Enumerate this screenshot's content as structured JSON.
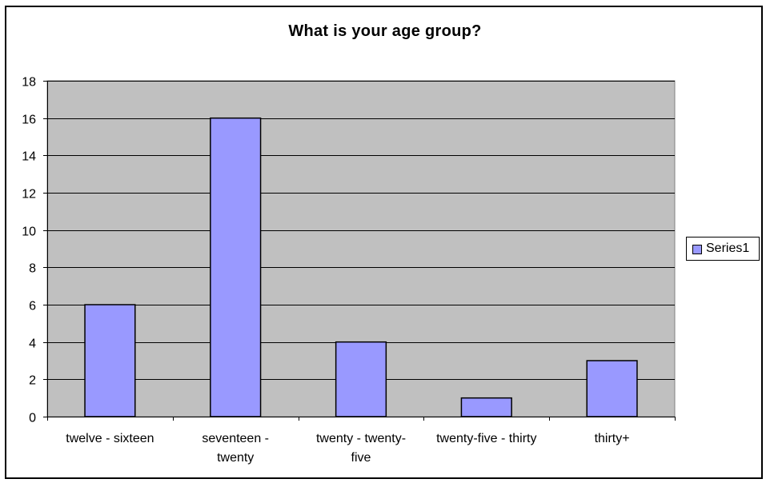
{
  "chart_data": {
    "type": "bar",
    "title": "What is your age group?",
    "categories": [
      [
        "twelve - sixteen"
      ],
      [
        "seventeen -",
        "twenty"
      ],
      [
        "twenty - twenty-",
        "five"
      ],
      [
        "twenty-five - thirty"
      ],
      [
        "thirty+"
      ]
    ],
    "series": [
      {
        "name": "Series1",
        "values": [
          6,
          16,
          4,
          1,
          3
        ]
      }
    ],
    "ylim": [
      0,
      18
    ],
    "yticks": [
      0,
      2,
      4,
      6,
      8,
      10,
      12,
      14,
      16,
      18
    ],
    "grid": true,
    "legend_position": "right",
    "colors": {
      "bar": "#9999ff",
      "plot_bg": "#c0c0c0",
      "gridline": "#000000"
    }
  }
}
